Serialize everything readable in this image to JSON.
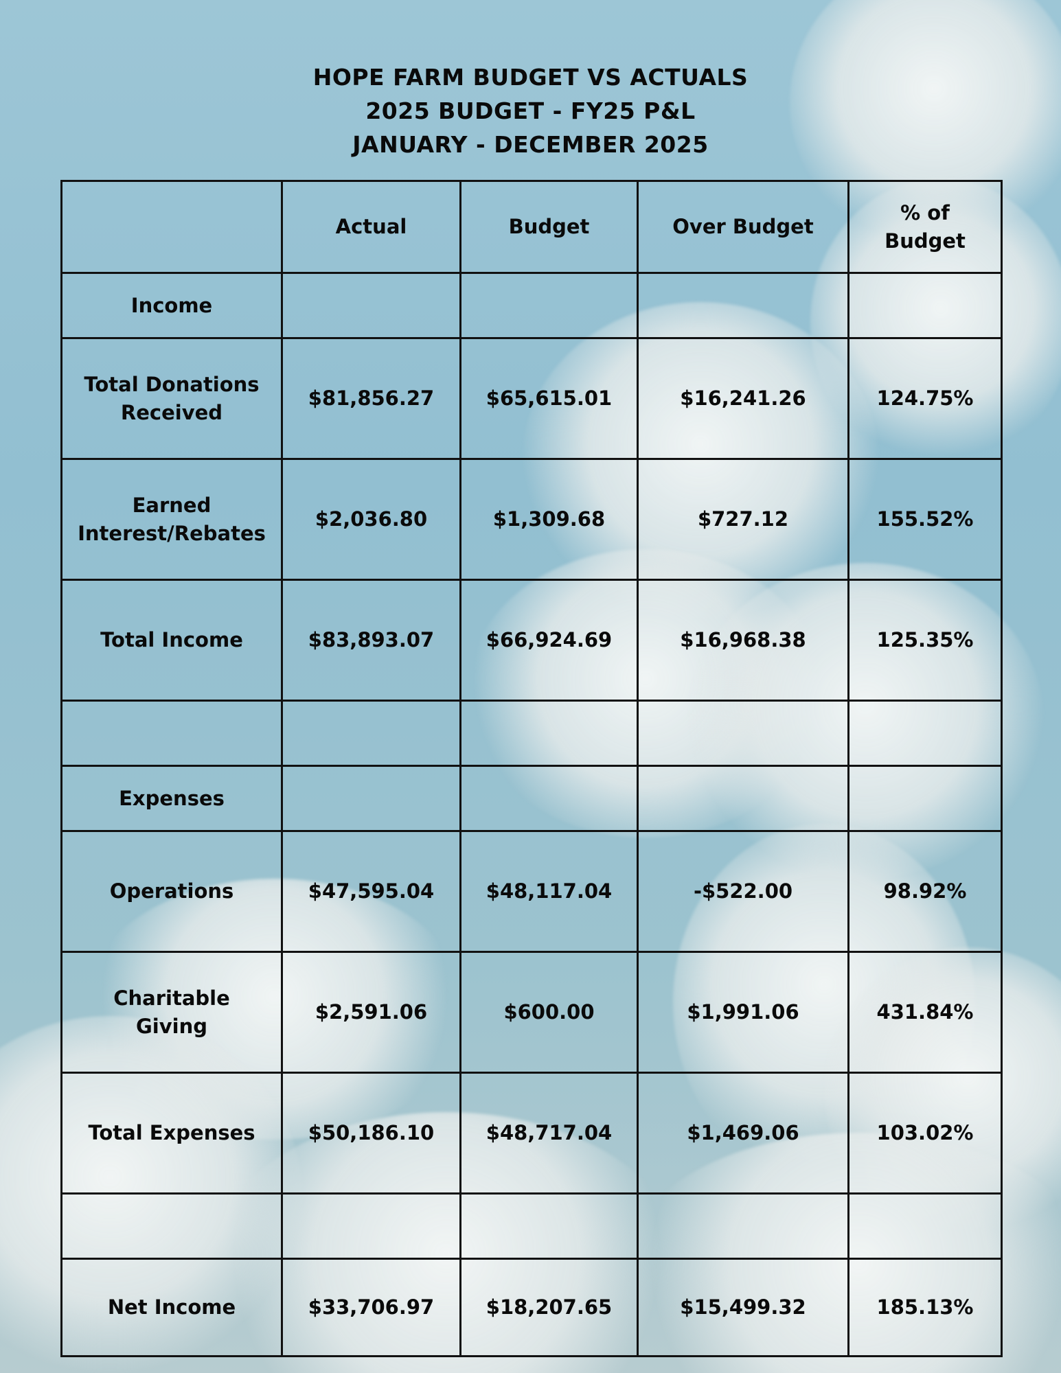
{
  "title": {
    "line1": "HOPE FARM BUDGET VS ACTUALS",
    "line2": "2025 BUDGET - FY25 P&L",
    "line3": "JANUARY - DECEMBER 2025"
  },
  "table": {
    "headers": {
      "label": "",
      "actual": "Actual",
      "budget": "Budget",
      "over_budget": "Over Budget",
      "pct_budget": "% of Budget"
    },
    "income_section": "Income",
    "expenses_section": "Expenses",
    "rows": {
      "donations": {
        "label": "Total Donations Received",
        "actual": "$81,856.27",
        "budget": "$65,615.01",
        "over_budget": "$16,241.26",
        "pct_budget": "124.75%"
      },
      "interest": {
        "label": "Earned Interest/Rebates",
        "actual": "$2,036.80",
        "budget": "$1,309.68",
        "over_budget": "$727.12",
        "pct_budget": "155.52%"
      },
      "total_income": {
        "label": "Total Income",
        "actual": "$83,893.07",
        "budget": "$66,924.69",
        "over_budget": "$16,968.38",
        "pct_budget": "125.35%"
      },
      "operations": {
        "label": "Operations",
        "actual": "$47,595.04",
        "budget": "$48,117.04",
        "over_budget": "-$522.00",
        "pct_budget": "98.92%"
      },
      "charitable": {
        "label": "Charitable Giving",
        "actual": "$2,591.06",
        "budget": "$600.00",
        "over_budget": "$1,991.06",
        "pct_budget": "431.84%"
      },
      "total_expenses": {
        "label": "Total Expenses",
        "actual": "$50,186.10",
        "budget": "$48,717.04",
        "over_budget": "$1,469.06",
        "pct_budget": "103.02%"
      },
      "net_income": {
        "label": "Net Income",
        "actual": "$33,706.97",
        "budget": "$18,207.65",
        "over_budget": "$15,499.32",
        "pct_budget": "185.13%"
      }
    }
  }
}
